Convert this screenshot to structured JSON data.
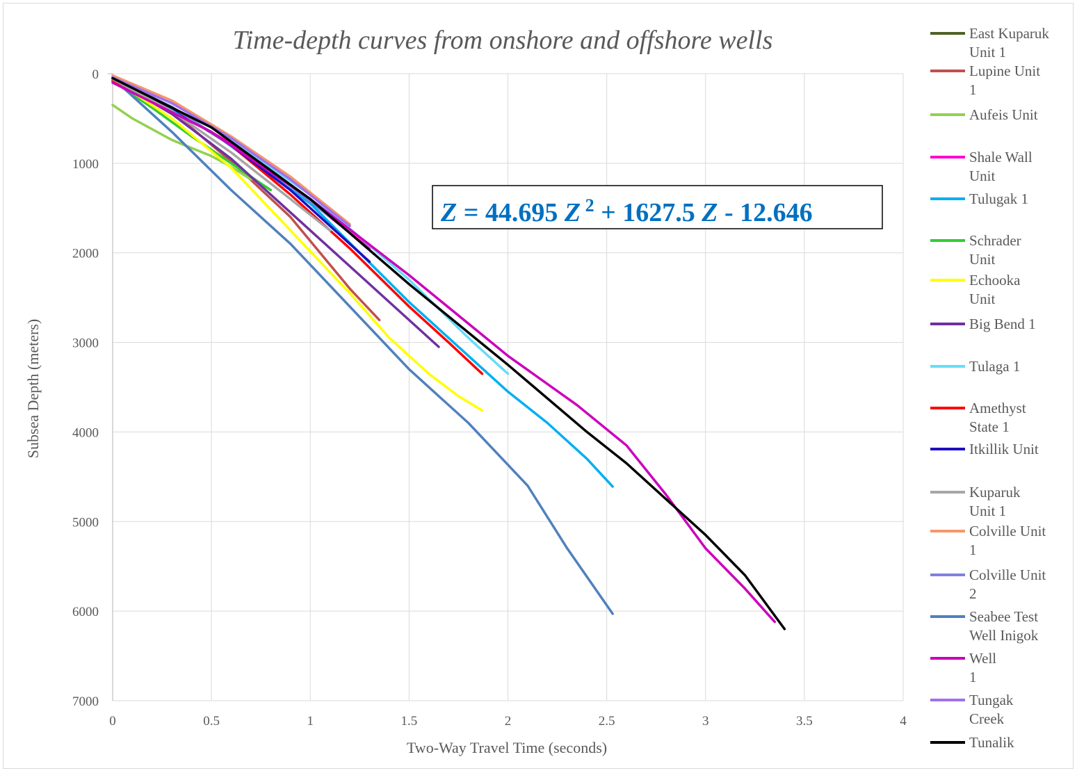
{
  "chart_data": {
    "type": "line",
    "title": "Time-depth curves from onshore and offshore wells",
    "xlabel": "Two-Way Travel Time (seconds)",
    "ylabel": "Subsea Depth (meters)",
    "xlim": [
      0,
      4
    ],
    "ylim": [
      0,
      7000
    ],
    "y_inverted": true,
    "x_ticks": [
      "0",
      "0.5",
      "1",
      "1.5",
      "2",
      "2.5",
      "3",
      "3.5",
      "4"
    ],
    "y_ticks": [
      "0",
      "1000",
      "2000",
      "3000",
      "4000",
      "5000",
      "6000",
      "7000"
    ],
    "grid": true,
    "legend_position": "right",
    "annotation": {
      "z1": "Z",
      "eq": " = 44.695 ",
      "z2": "Z",
      "sup": " 2",
      "mid": " + 1627.5 ",
      "z3": "Z",
      "end": " - 12.646"
    },
    "series": [
      {
        "name": "East Kuparuk Unit 1",
        "legend_lines": [
          "East Kuparuk",
          "Unit 1"
        ],
        "color": "#4f6228",
        "x": [
          0,
          0.2,
          0.4,
          0.6,
          0.8,
          1.0
        ],
        "y": [
          40,
          260,
          520,
          800,
          1100,
          1400
        ]
      },
      {
        "name": "Lupine Unit 1",
        "legend_lines": [
          "Lupine Unit",
          "1"
        ],
        "color": "#c0504d",
        "x": [
          0,
          0.3,
          0.6,
          0.9,
          1.2,
          1.35
        ],
        "y": [
          60,
          420,
          980,
          1600,
          2400,
          2750
        ]
      },
      {
        "name": "Aufeis Unit",
        "legend_lines": [
          "Aufeis Unit"
        ],
        "color": "#92d050",
        "x": [
          0,
          0.1,
          0.2,
          0.3,
          0.4,
          0.5,
          0.6,
          0.7
        ],
        "y": [
          350,
          500,
          620,
          740,
          830,
          920,
          1040,
          1180
        ]
      },
      {
        "name": "Shale Wall Unit",
        "legend_lines": [
          "Shale Wall",
          "Unit"
        ],
        "color": "#ff00cc",
        "x": [
          0,
          0.3,
          0.6,
          0.9,
          1.1,
          1.3
        ],
        "y": [
          80,
          400,
          780,
          1250,
          1600,
          1950
        ]
      },
      {
        "name": "Tulugak 1",
        "legend_lines": [
          "Tulugak 1"
        ],
        "color": "#00b0f0",
        "x": [
          0,
          0.5,
          1.0,
          1.5,
          1.8,
          2.0,
          2.2,
          2.4,
          2.53
        ],
        "y": [
          50,
          650,
          1450,
          2550,
          3150,
          3550,
          3900,
          4300,
          4610
        ]
      },
      {
        "name": "Schrader Unit",
        "legend_lines": [
          "Schrader",
          "Unit"
        ],
        "color": "#33cc33",
        "x": [
          0,
          0.2,
          0.4,
          0.6,
          0.8
        ],
        "y": [
          80,
          380,
          700,
          1000,
          1300
        ]
      },
      {
        "name": "Echooka Unit",
        "legend_lines": [
          "Echooka",
          "Unit"
        ],
        "color": "#ffff00",
        "x": [
          0,
          0.3,
          0.6,
          0.9,
          1.2,
          1.4,
          1.6,
          1.75,
          1.87
        ],
        "y": [
          60,
          500,
          1050,
          1750,
          2450,
          2950,
          3350,
          3600,
          3760
        ]
      },
      {
        "name": "Big Bend 1",
        "legend_lines": [
          "Big Bend 1"
        ],
        "color": "#7030a0",
        "x": [
          0,
          0.3,
          0.6,
          0.9,
          1.2,
          1.45,
          1.65
        ],
        "y": [
          60,
          450,
          950,
          1550,
          2150,
          2650,
          3050
        ]
      },
      {
        "name": "Tulaga 1",
        "legend_lines": [
          "Tulaga 1"
        ],
        "color": "#66ddf7",
        "x": [
          0,
          0.5,
          1.0,
          1.5,
          1.8,
          2.0
        ],
        "y": [
          50,
          600,
          1350,
          2300,
          2950,
          3350
        ]
      },
      {
        "name": "Amethyst State 1",
        "legend_lines": [
          "Amethyst",
          "State 1"
        ],
        "color": "#ff0000",
        "x": [
          0,
          0.3,
          0.6,
          0.9,
          1.2,
          1.5,
          1.7,
          1.87
        ],
        "y": [
          80,
          380,
          800,
          1350,
          1950,
          2600,
          3000,
          3350
        ]
      },
      {
        "name": "Itkillik Unit",
        "legend_lines": [
          "Itkillik Unit"
        ],
        "color": "#1f0fc0",
        "x": [
          0,
          0.3,
          0.6,
          0.9,
          1.1,
          1.3
        ],
        "y": [
          60,
          380,
          800,
          1300,
          1700,
          2100
        ]
      },
      {
        "name": "Kuparuk Unit 1",
        "legend_lines": [
          "Kuparuk",
          "Unit 1"
        ],
        "color": "#a6a6a6",
        "x": [
          0,
          0.3,
          0.6,
          0.9,
          1.1
        ],
        "y": [
          60,
          420,
          880,
          1400,
          1750
        ]
      },
      {
        "name": "Colville Unit 1",
        "legend_lines": [
          "Colville Unit",
          "1"
        ],
        "color": "#f79668",
        "x": [
          0,
          0.3,
          0.6,
          0.9,
          1.2
        ],
        "y": [
          20,
          300,
          700,
          1150,
          1680
        ]
      },
      {
        "name": "Colville Unit 2",
        "legend_lines": [
          "Colville Unit",
          "2"
        ],
        "color": "#8080e0",
        "x": [
          0,
          0.3,
          0.6,
          0.9,
          1.1
        ],
        "y": [
          50,
          370,
          800,
          1250,
          1600
        ]
      },
      {
        "name": "Seabee Test Well Inigok",
        "legend_lines": [
          "Seabee Test",
          "Well Inigok"
        ],
        "color": "#4f81bd",
        "x": [
          0.05,
          0.3,
          0.6,
          0.9,
          1.2,
          1.5,
          1.8,
          2.1,
          2.3,
          2.53
        ],
        "y": [
          150,
          650,
          1300,
          1900,
          2600,
          3300,
          3900,
          4600,
          5300,
          6030
        ]
      },
      {
        "name": "Well 1",
        "legend_lines": [
          "Well",
          "1"
        ],
        "color": "#cc00bb",
        "x": [
          0,
          0.5,
          1.0,
          1.5,
          2.0,
          2.35,
          2.6,
          2.8,
          3.0,
          3.2,
          3.35
        ],
        "y": [
          100,
          650,
          1400,
          2250,
          3150,
          3700,
          4150,
          4700,
          5300,
          5750,
          6120
        ]
      },
      {
        "name": "Tungak Creek",
        "legend_lines": [
          "Tungak",
          "Creek"
        ],
        "color": "#a070f0",
        "x": [
          0,
          0.3,
          0.6,
          0.9,
          1.2
        ],
        "y": [
          40,
          330,
          720,
          1180,
          1700
        ]
      },
      {
        "name": "Tunalik",
        "legend_lines": [
          "Tunalik"
        ],
        "color": "#000000",
        "x": [
          0,
          0.5,
          1.0,
          1.5,
          2.0,
          2.4,
          2.6,
          2.8,
          3.0,
          3.2,
          3.4
        ],
        "y": [
          50,
          600,
          1400,
          2350,
          3250,
          4000,
          4350,
          4750,
          5150,
          5600,
          6200
        ]
      }
    ]
  }
}
